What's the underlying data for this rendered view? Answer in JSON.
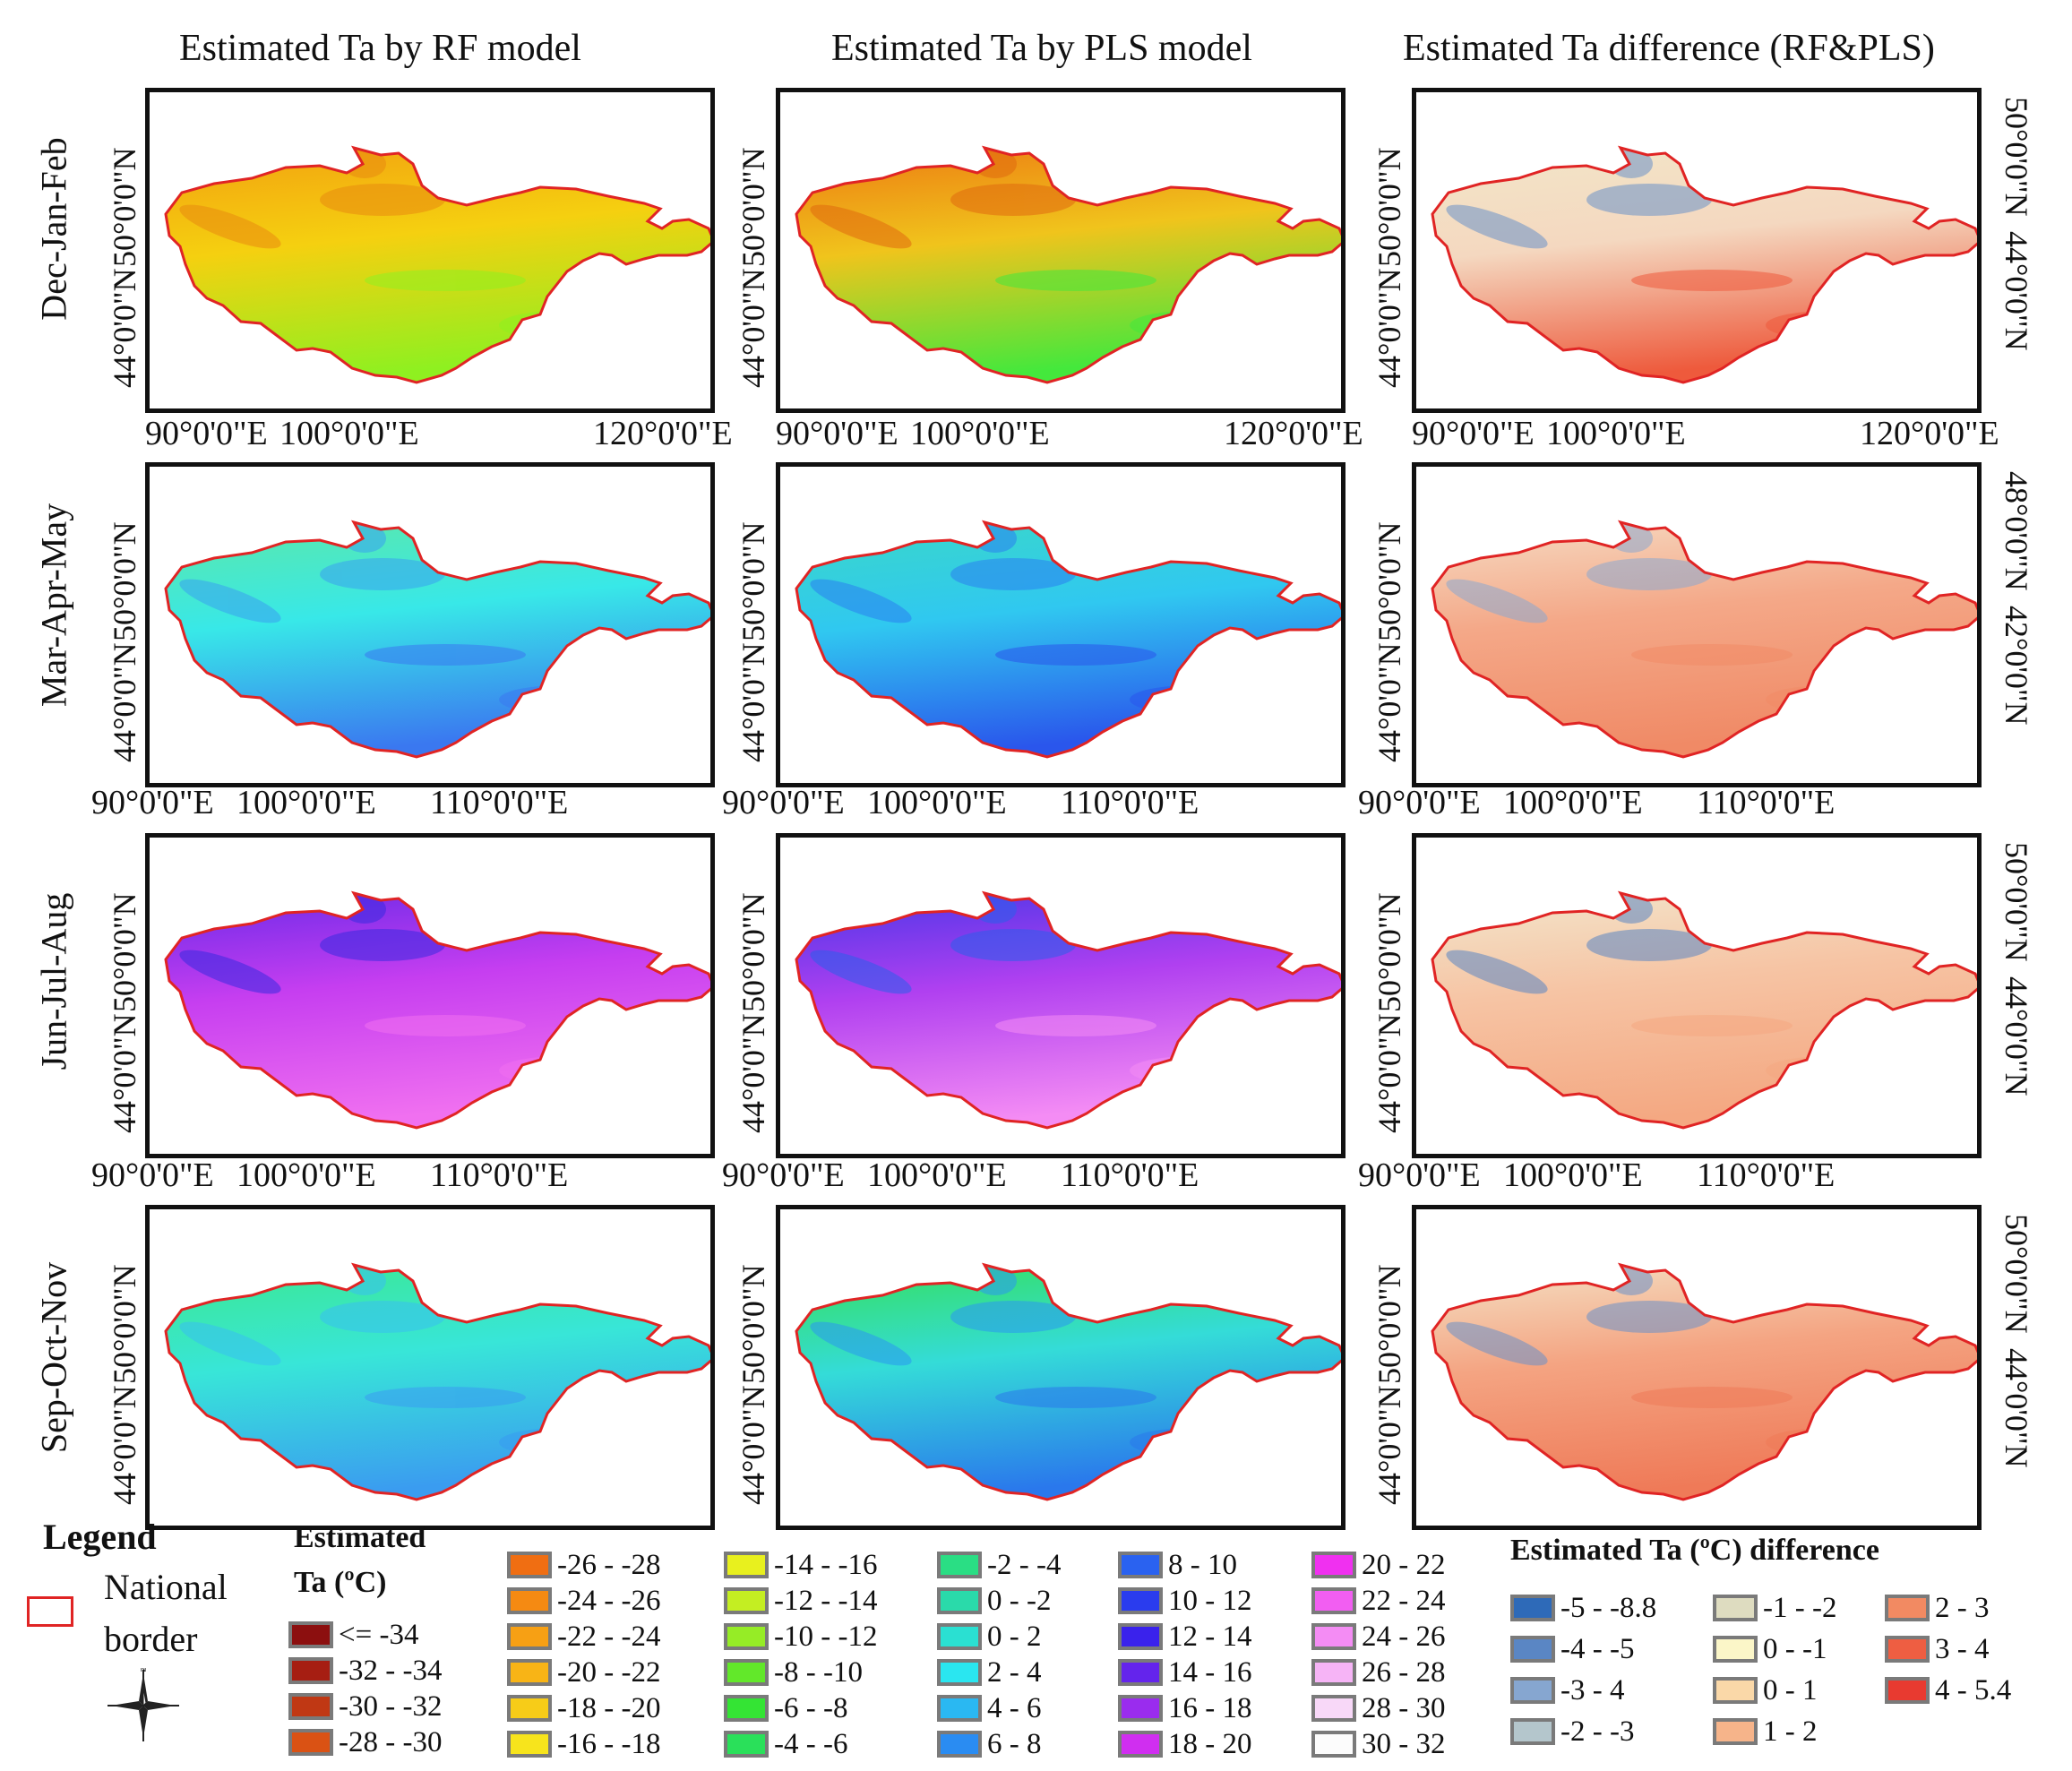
{
  "column_titles": [
    "Estimated Ta by RF model",
    "Estimated Ta by PLS model",
    "Estimated Ta difference (RF&PLS)"
  ],
  "row_labels": [
    "Dec-Jan-Feb",
    "Mar-Apr-May",
    "Jun-Jul-Aug",
    "Sep-Oct-Nov"
  ],
  "panel_schemes": [
    [
      "djf_rf",
      "djf_pls",
      "djf_diff"
    ],
    [
      "mam_rf",
      "mam_pls",
      "mam_diff"
    ],
    [
      "jja_rf",
      "jja_pls",
      "jja_diff"
    ],
    [
      "son_rf",
      "son_pls",
      "son_diff"
    ]
  ],
  "schemes": {
    "djf_rf": {
      "north": "#f2a010",
      "mid": "#f5d010",
      "south": "#8ff020",
      "streak": "#e88a10"
    },
    "djf_pls": {
      "north": "#ec7a12",
      "mid": "#f0c41c",
      "south": "#44e83c",
      "streak": "#e06a10"
    },
    "djf_diff": {
      "north": "#f2e6c8",
      "mid": "#f4d8c0",
      "south": "#ee5a3c",
      "streak": "#6a92c8"
    },
    "mam_rf": {
      "north": "#5ce8a8",
      "mid": "#38e8e8",
      "south": "#3a78f0",
      "streak": "#3aa0f0"
    },
    "mam_pls": {
      "north": "#3ad8c8",
      "mid": "#30c8f0",
      "south": "#2a56ec",
      "streak": "#2a80f0"
    },
    "mam_diff": {
      "north": "#f6dcc4",
      "mid": "#f4a888",
      "south": "#f08a66",
      "streak": "#8aa8d0"
    },
    "jja_rf": {
      "north": "#6a2ae8",
      "mid": "#c63ef0",
      "south": "#f070f0",
      "streak": "#3a2ae0"
    },
    "jja_pls": {
      "north": "#4a36e8",
      "mid": "#b040f0",
      "south": "#f48cf4",
      "streak": "#2a60ec"
    },
    "jja_diff": {
      "north": "#f2e6cc",
      "mid": "#f6c4a4",
      "south": "#f4a882",
      "streak": "#5a86c4"
    },
    "son_rf": {
      "north": "#3ce890",
      "mid": "#38e6d8",
      "south": "#3a9cf0",
      "streak": "#3ac0f0"
    },
    "son_pls": {
      "north": "#36e05a",
      "mid": "#34dcd8",
      "south": "#2a78ec",
      "streak": "#2a98f0"
    },
    "son_diff": {
      "north": "#f4e2c6",
      "mid": "#f4a482",
      "south": "#ef7a58",
      "streak": "#6a90c8"
    }
  },
  "lon_tick_sets": {
    "wide": [
      "90°0'0\"E",
      "100°0'0\"E",
      "120°0'0\"E"
    ],
    "narrow": [
      "90°0'0\"E",
      "100°0'0\"E",
      "110°0'0\"E"
    ]
  },
  "lat_labels": {
    "left": [
      "50°0'0\"N",
      "44°0'0\"N"
    ],
    "right_diff_row1": [
      "50°0'0\"N",
      "44°0'0\"N"
    ],
    "right_diff_row2": [
      "48°0'0\"N",
      "42°0'0\"N"
    ]
  },
  "legend": {
    "title": "Legend",
    "national_border_label_1": "National",
    "national_border_label_2": "border",
    "border_color": "#e02424",
    "compass_icon": "compass-rose-icon",
    "ta_title_1": "Estimated",
    "ta_title_2": "Ta (ºC)",
    "ta_classes": [
      {
        "label": "<= -34",
        "color": "#8c0f0f"
      },
      {
        "label": "-32 - -34",
        "color": "#a61e12"
      },
      {
        "label": "-30 - -32",
        "color": "#c03814"
      },
      {
        "label": "-28 - -30",
        "color": "#da5214"
      },
      {
        "label": "-26 - -28",
        "color": "#f06e12"
      },
      {
        "label": "-24 - -26",
        "color": "#f58a12"
      },
      {
        "label": "-22 - -24",
        "color": "#f7a014"
      },
      {
        "label": "-20 - -22",
        "color": "#f8b416"
      },
      {
        "label": "-18 - -20",
        "color": "#f7cc18"
      },
      {
        "label": "-16 - -18",
        "color": "#f7e41c"
      },
      {
        "label": "-14 - -16",
        "color": "#e8f01e"
      },
      {
        "label": "-12 - -14",
        "color": "#c4ee22"
      },
      {
        "label": "-10 - -12",
        "color": "#96ec26"
      },
      {
        "label": "-8 - -10",
        "color": "#62e82a"
      },
      {
        "label": "-6 - -8",
        "color": "#34e434"
      },
      {
        "label": "-4 - -6",
        "color": "#2ae05a"
      },
      {
        "label": "-2 - -4",
        "color": "#2ade84"
      },
      {
        "label": "0 - -2",
        "color": "#2adaaa"
      },
      {
        "label": "0 - 2",
        "color": "#2ae0d2"
      },
      {
        "label": "2 - 4",
        "color": "#2ae6f0"
      },
      {
        "label": "4 - 6",
        "color": "#2ab8f2"
      },
      {
        "label": "6 - 8",
        "color": "#2a8cf2"
      },
      {
        "label": "8 - 10",
        "color": "#2a62f0"
      },
      {
        "label": "10 - 12",
        "color": "#2a3cee"
      },
      {
        "label": "12 - 14",
        "color": "#3a22ec"
      },
      {
        "label": "14 - 16",
        "color": "#6424ec"
      },
      {
        "label": "16 - 18",
        "color": "#9a2cee"
      },
      {
        "label": "18 - 20",
        "color": "#d02ef0"
      },
      {
        "label": "20 - 22",
        "color": "#f030f0"
      },
      {
        "label": "22 - 24",
        "color": "#f25ef2"
      },
      {
        "label": "24 - 26",
        "color": "#f48cf4"
      },
      {
        "label": "26 - 28",
        "color": "#f6b4f6"
      },
      {
        "label": "28 - 30",
        "color": "#f8d8f8"
      },
      {
        "label": "30 - 32",
        "color": "#fcfcfc"
      }
    ],
    "diff_title": "Estimated Ta (ºC) difference",
    "diff_classes": [
      {
        "label": "-5 - -8.8",
        "color": "#2e6ab8"
      },
      {
        "label": "-4 - -5",
        "color": "#5a86c4"
      },
      {
        "label": "-3 - 4",
        "color": "#86a6d0"
      },
      {
        "label": "-2 - -3",
        "color": "#b4c6cc"
      },
      {
        "label": "-1 - -2",
        "color": "#dedcc0"
      },
      {
        "label": "0 - -1",
        "color": "#fbf6c8"
      },
      {
        "label": "0 - 1",
        "color": "#fad8a8"
      },
      {
        "label": "1 - 2",
        "color": "#f6b48a"
      },
      {
        "label": "2 - 3",
        "color": "#f28a62"
      },
      {
        "label": "3 - 4",
        "color": "#ee5e42"
      },
      {
        "label": "4 - 5.4",
        "color": "#e83a30"
      }
    ]
  }
}
